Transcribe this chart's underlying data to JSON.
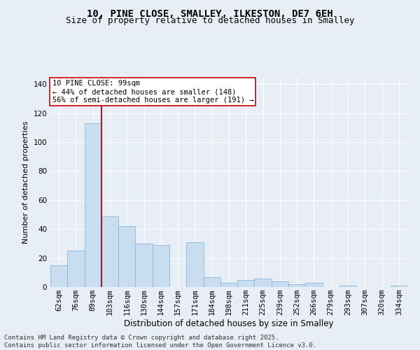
{
  "title": "10, PINE CLOSE, SMALLEY, ILKESTON, DE7 6EH",
  "subtitle": "Size of property relative to detached houses in Smalley",
  "xlabel": "Distribution of detached houses by size in Smalley",
  "ylabel": "Number of detached properties",
  "categories": [
    "62sqm",
    "76sqm",
    "89sqm",
    "103sqm",
    "116sqm",
    "130sqm",
    "144sqm",
    "157sqm",
    "171sqm",
    "184sqm",
    "198sqm",
    "211sqm",
    "225sqm",
    "239sqm",
    "252sqm",
    "266sqm",
    "279sqm",
    "293sqm",
    "307sqm",
    "320sqm",
    "334sqm"
  ],
  "values": [
    15,
    25,
    113,
    49,
    42,
    30,
    29,
    0,
    31,
    7,
    3,
    5,
    6,
    4,
    2,
    3,
    0,
    1,
    0,
    0,
    1
  ],
  "bar_color": "#c9ddf0",
  "bar_edge_color": "#8ab8d8",
  "vline_x": 2.5,
  "vline_color": "#cc0000",
  "annotation_text": "10 PINE CLOSE: 99sqm\n← 44% of detached houses are smaller (148)\n56% of semi-detached houses are larger (191) →",
  "annotation_box_facecolor": "#ffffff",
  "annotation_box_edgecolor": "#cc0000",
  "ylim": [
    0,
    145
  ],
  "yticks": [
    0,
    20,
    40,
    60,
    80,
    100,
    120,
    140
  ],
  "bg_color": "#e8eef5",
  "plot_bg_color": "#e8eef5",
  "grid_color": "#ffffff",
  "footer": "Contains HM Land Registry data © Crown copyright and database right 2025.\nContains public sector information licensed under the Open Government Licence v3.0.",
  "title_fontsize": 10,
  "subtitle_fontsize": 9,
  "xlabel_fontsize": 8.5,
  "ylabel_fontsize": 8,
  "tick_fontsize": 7.5,
  "annotation_fontsize": 7.5,
  "footer_fontsize": 6.5
}
